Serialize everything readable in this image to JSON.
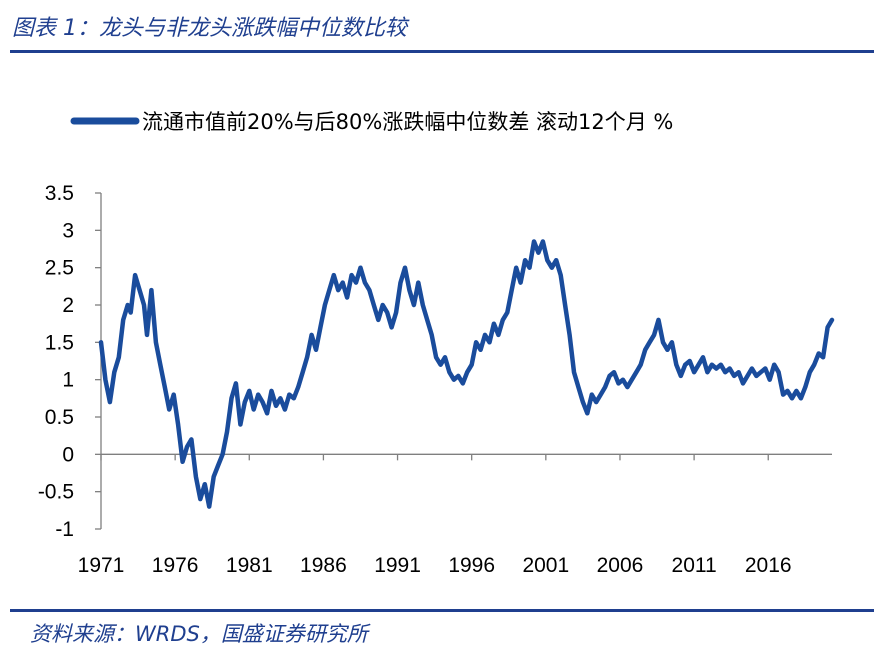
{
  "figure": {
    "title": "图表 1：龙头与非龙头涨跌幅中位数比较",
    "source": "资料来源：WRDS，国盛证券研究所"
  },
  "colors": {
    "accent": "#1f3f8f",
    "series": "#1a4c9c"
  },
  "chart_data": {
    "type": "line",
    "title": "",
    "xlabel": "",
    "ylabel": "",
    "legend_position": "top",
    "grid": false,
    "x_ticks": [
      "1971",
      "1976",
      "1981",
      "1986",
      "1991",
      "1996",
      "2001",
      "2006",
      "2011",
      "2016"
    ],
    "y_ticks": [
      "3.5",
      "3",
      "2.5",
      "2",
      "1.5",
      "1",
      "0.5",
      "0",
      "-0.5",
      "-1"
    ],
    "xlim": [
      1971,
      2020.3
    ],
    "ylim": [
      -1,
      3.5
    ],
    "series": [
      {
        "name": "流通市值前20%与后80%涨跌幅中位数差 滚动12个月 %",
        "points": [
          [
            1971.0,
            1.5
          ],
          [
            1971.3,
            1.0
          ],
          [
            1971.6,
            0.7
          ],
          [
            1971.9,
            1.1
          ],
          [
            1972.2,
            1.3
          ],
          [
            1972.5,
            1.8
          ],
          [
            1972.8,
            2.0
          ],
          [
            1973.0,
            1.9
          ],
          [
            1973.3,
            2.4
          ],
          [
            1973.6,
            2.2
          ],
          [
            1973.9,
            2.0
          ],
          [
            1974.1,
            1.6
          ],
          [
            1974.4,
            2.2
          ],
          [
            1974.7,
            1.5
          ],
          [
            1975.0,
            1.2
          ],
          [
            1975.3,
            0.9
          ],
          [
            1975.6,
            0.6
          ],
          [
            1975.9,
            0.8
          ],
          [
            1976.2,
            0.4
          ],
          [
            1976.5,
            -0.1
          ],
          [
            1976.8,
            0.1
          ],
          [
            1977.1,
            0.2
          ],
          [
            1977.4,
            -0.3
          ],
          [
            1977.7,
            -0.6
          ],
          [
            1978.0,
            -0.4
          ],
          [
            1978.3,
            -0.7
          ],
          [
            1978.6,
            -0.3
          ],
          [
            1978.9,
            -0.15
          ],
          [
            1979.2,
            0.0
          ],
          [
            1979.5,
            0.3
          ],
          [
            1979.8,
            0.75
          ],
          [
            1980.1,
            0.95
          ],
          [
            1980.4,
            0.4
          ],
          [
            1980.7,
            0.7
          ],
          [
            1981.0,
            0.85
          ],
          [
            1981.3,
            0.6
          ],
          [
            1981.6,
            0.8
          ],
          [
            1981.9,
            0.7
          ],
          [
            1982.2,
            0.55
          ],
          [
            1982.5,
            0.85
          ],
          [
            1982.8,
            0.65
          ],
          [
            1983.1,
            0.75
          ],
          [
            1983.4,
            0.6
          ],
          [
            1983.7,
            0.8
          ],
          [
            1984.0,
            0.75
          ],
          [
            1984.3,
            0.9
          ],
          [
            1984.6,
            1.1
          ],
          [
            1984.9,
            1.3
          ],
          [
            1985.2,
            1.6
          ],
          [
            1985.5,
            1.4
          ],
          [
            1985.8,
            1.7
          ],
          [
            1986.1,
            2.0
          ],
          [
            1986.4,
            2.2
          ],
          [
            1986.7,
            2.4
          ],
          [
            1987.0,
            2.2
          ],
          [
            1987.3,
            2.3
          ],
          [
            1987.6,
            2.1
          ],
          [
            1987.9,
            2.4
          ],
          [
            1988.2,
            2.3
          ],
          [
            1988.5,
            2.5
          ],
          [
            1988.8,
            2.3
          ],
          [
            1989.1,
            2.2
          ],
          [
            1989.4,
            2.0
          ],
          [
            1989.7,
            1.8
          ],
          [
            1990.0,
            2.0
          ],
          [
            1990.3,
            1.9
          ],
          [
            1990.6,
            1.7
          ],
          [
            1990.9,
            1.9
          ],
          [
            1991.2,
            2.3
          ],
          [
            1991.5,
            2.5
          ],
          [
            1991.8,
            2.2
          ],
          [
            1992.1,
            2.0
          ],
          [
            1992.4,
            2.3
          ],
          [
            1992.7,
            2.0
          ],
          [
            1993.0,
            1.8
          ],
          [
            1993.3,
            1.6
          ],
          [
            1993.6,
            1.3
          ],
          [
            1993.9,
            1.2
          ],
          [
            1994.2,
            1.3
          ],
          [
            1994.5,
            1.1
          ],
          [
            1994.8,
            1.0
          ],
          [
            1995.1,
            1.05
          ],
          [
            1995.4,
            0.95
          ],
          [
            1995.7,
            1.1
          ],
          [
            1996.0,
            1.2
          ],
          [
            1996.3,
            1.5
          ],
          [
            1996.6,
            1.4
          ],
          [
            1996.9,
            1.6
          ],
          [
            1997.2,
            1.5
          ],
          [
            1997.5,
            1.75
          ],
          [
            1997.8,
            1.6
          ],
          [
            1998.1,
            1.8
          ],
          [
            1998.4,
            1.9
          ],
          [
            1998.7,
            2.2
          ],
          [
            1999.0,
            2.5
          ],
          [
            1999.3,
            2.3
          ],
          [
            1999.6,
            2.6
          ],
          [
            1999.9,
            2.5
          ],
          [
            2000.2,
            2.85
          ],
          [
            2000.5,
            2.7
          ],
          [
            2000.8,
            2.85
          ],
          [
            2001.1,
            2.6
          ],
          [
            2001.4,
            2.5
          ],
          [
            2001.7,
            2.6
          ],
          [
            2002.0,
            2.4
          ],
          [
            2002.3,
            2.0
          ],
          [
            2002.6,
            1.6
          ],
          [
            2002.9,
            1.1
          ],
          [
            2003.2,
            0.9
          ],
          [
            2003.5,
            0.7
          ],
          [
            2003.8,
            0.55
          ],
          [
            2004.1,
            0.8
          ],
          [
            2004.4,
            0.7
          ],
          [
            2004.7,
            0.8
          ],
          [
            2005.0,
            0.9
          ],
          [
            2005.3,
            1.05
          ],
          [
            2005.6,
            1.1
          ],
          [
            2005.9,
            0.95
          ],
          [
            2006.2,
            1.0
          ],
          [
            2006.5,
            0.9
          ],
          [
            2006.8,
            1.0
          ],
          [
            2007.1,
            1.1
          ],
          [
            2007.4,
            1.2
          ],
          [
            2007.7,
            1.4
          ],
          [
            2008.0,
            1.5
          ],
          [
            2008.3,
            1.6
          ],
          [
            2008.6,
            1.8
          ],
          [
            2008.9,
            1.5
          ],
          [
            2009.2,
            1.4
          ],
          [
            2009.5,
            1.5
          ],
          [
            2009.8,
            1.2
          ],
          [
            2010.1,
            1.05
          ],
          [
            2010.4,
            1.2
          ],
          [
            2010.7,
            1.25
          ],
          [
            2011.0,
            1.1
          ],
          [
            2011.3,
            1.2
          ],
          [
            2011.6,
            1.3
          ],
          [
            2011.9,
            1.1
          ],
          [
            2012.2,
            1.2
          ],
          [
            2012.5,
            1.15
          ],
          [
            2012.8,
            1.2
          ],
          [
            2013.1,
            1.1
          ],
          [
            2013.4,
            1.15
          ],
          [
            2013.7,
            1.05
          ],
          [
            2014.0,
            1.1
          ],
          [
            2014.3,
            0.95
          ],
          [
            2014.6,
            1.05
          ],
          [
            2014.9,
            1.15
          ],
          [
            2015.2,
            1.05
          ],
          [
            2015.5,
            1.1
          ],
          [
            2015.8,
            1.15
          ],
          [
            2016.1,
            1.0
          ],
          [
            2016.4,
            1.2
          ],
          [
            2016.7,
            1.1
          ],
          [
            2017.0,
            0.8
          ],
          [
            2017.3,
            0.85
          ],
          [
            2017.6,
            0.75
          ],
          [
            2017.9,
            0.85
          ],
          [
            2018.2,
            0.75
          ],
          [
            2018.5,
            0.9
          ],
          [
            2018.8,
            1.1
          ],
          [
            2019.1,
            1.2
          ],
          [
            2019.4,
            1.35
          ],
          [
            2019.7,
            1.3
          ],
          [
            2020.0,
            1.7
          ],
          [
            2020.3,
            1.8
          ]
        ]
      }
    ]
  }
}
